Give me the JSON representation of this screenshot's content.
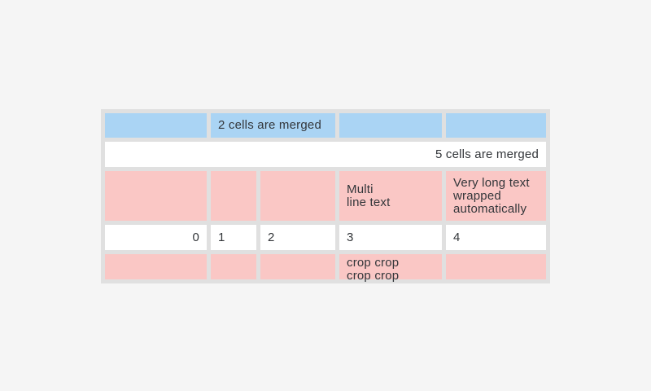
{
  "app": {
    "background": "#f5f5f5"
  },
  "table": {
    "colors": {
      "grid": "#e0e0e0",
      "blue": "#aad4f4",
      "pink": "#fac7c5",
      "white": "#ffffff",
      "text": "#33363a"
    },
    "rows": [
      {
        "style": "blue",
        "cells": [
          {
            "text": ""
          },
          {
            "text": "2 cells are merged",
            "span": 2
          },
          {
            "text": ""
          },
          {
            "text": ""
          }
        ]
      },
      {
        "style": "white",
        "cells": [
          {
            "text": "5 cells are merged",
            "span": 5,
            "align": "right"
          }
        ]
      },
      {
        "style": "pink",
        "cells": [
          {
            "text": ""
          },
          {
            "text": ""
          },
          {
            "text": ""
          },
          {
            "text": "Multi\nline text"
          },
          {
            "text": "Very long text wrapped automatically"
          }
        ]
      },
      {
        "style": "white",
        "cells": [
          {
            "text": "0",
            "align": "right"
          },
          {
            "text": "1"
          },
          {
            "text": "2"
          },
          {
            "text": "3"
          },
          {
            "text": "4"
          }
        ]
      },
      {
        "style": "pink",
        "cells": [
          {
            "text": ""
          },
          {
            "text": ""
          },
          {
            "text": ""
          },
          {
            "text": "crop crop crop crop",
            "clipped": true
          },
          {
            "text": ""
          }
        ]
      }
    ]
  }
}
